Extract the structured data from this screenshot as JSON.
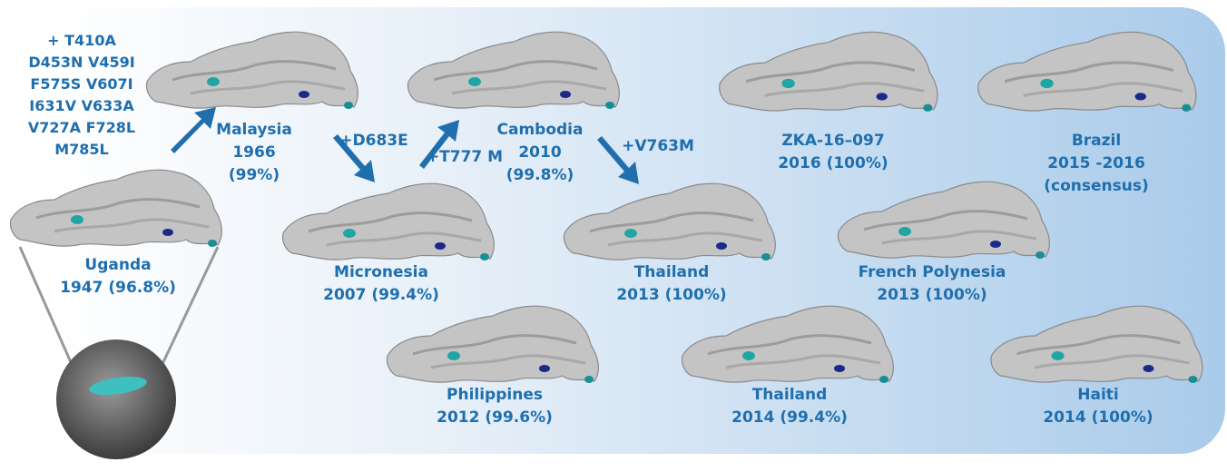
{
  "mutations": [
    "+ T410A",
    "D453N V459I",
    "F575S V607I",
    "I631V V633A",
    "V727A F728L",
    "M785L"
  ],
  "nodes": [
    {
      "lines": [
        "Uganda",
        "1947 (96.8%)"
      ]
    },
    {
      "lines": [
        "Malaysia",
        "1966",
        "(99%)"
      ]
    },
    {
      "lines": [
        "Micronesia",
        "2007 (99.4%)"
      ]
    },
    {
      "lines": [
        "Cambodia",
        "2010",
        "(99.8%)"
      ]
    },
    {
      "lines": [
        "Thailand",
        "2013 (100%)"
      ]
    },
    {
      "lines": [
        "Philippines",
        "2012 (99.6%)"
      ]
    },
    {
      "lines": [
        "Thailand",
        "2014 (99.4%)"
      ]
    },
    {
      "lines": [
        "ZKA-16–097",
        "2016 (100%)"
      ]
    },
    {
      "lines": [
        "French Polynesia",
        "2013 (100%)"
      ]
    },
    {
      "lines": [
        "Brazil",
        "2015 -2016",
        "(consensus)"
      ]
    },
    {
      "lines": [
        "Haiti",
        "2014 (100%)"
      ]
    }
  ],
  "arrows": [
    {
      "label": "+D683E"
    },
    {
      "label": "+T777 M"
    },
    {
      "label": "+V763M"
    }
  ]
}
